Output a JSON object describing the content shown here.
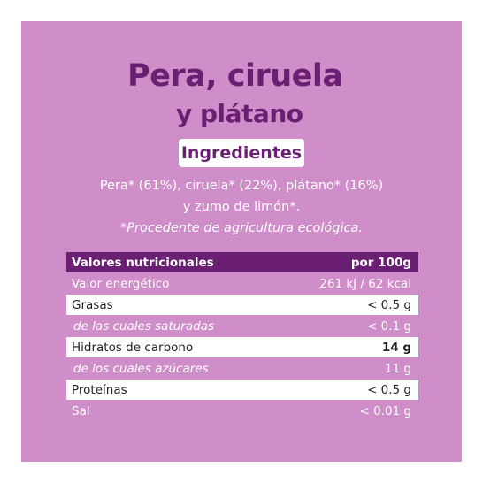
{
  "title": {
    "line1": "Pera, ciruela",
    "line2": "y plátano"
  },
  "ingredients": {
    "heading": "Ingredientes",
    "line1": "Pera* (61%), ciruela* (22%), plátano* (16%)",
    "line2": "y zumo de limón*.",
    "note": "*Procedente de agricultura ecológica."
  },
  "nutrition": {
    "header": {
      "label": "Valores nutricionales",
      "value": "por 100g"
    },
    "rows": [
      {
        "label": "Valor energético",
        "value": "261 kJ / 62 kcal"
      },
      {
        "label": "Grasas",
        "value": "< 0.5 g"
      },
      {
        "label": "de las cuales saturadas",
        "value": "< 0.1 g"
      },
      {
        "label": "Hidratos de carbono",
        "value": "14 g"
      },
      {
        "label": "de los cuales azúcares",
        "value": "11 g"
      },
      {
        "label": "Proteínas",
        "value": "< 0.5 g"
      },
      {
        "label": "Sal",
        "value": "< 0.01 g"
      }
    ]
  },
  "colors": {
    "panel_background": "#cf8ec9",
    "brand_purple": "#6a1f73",
    "text_white": "#ffffff"
  }
}
